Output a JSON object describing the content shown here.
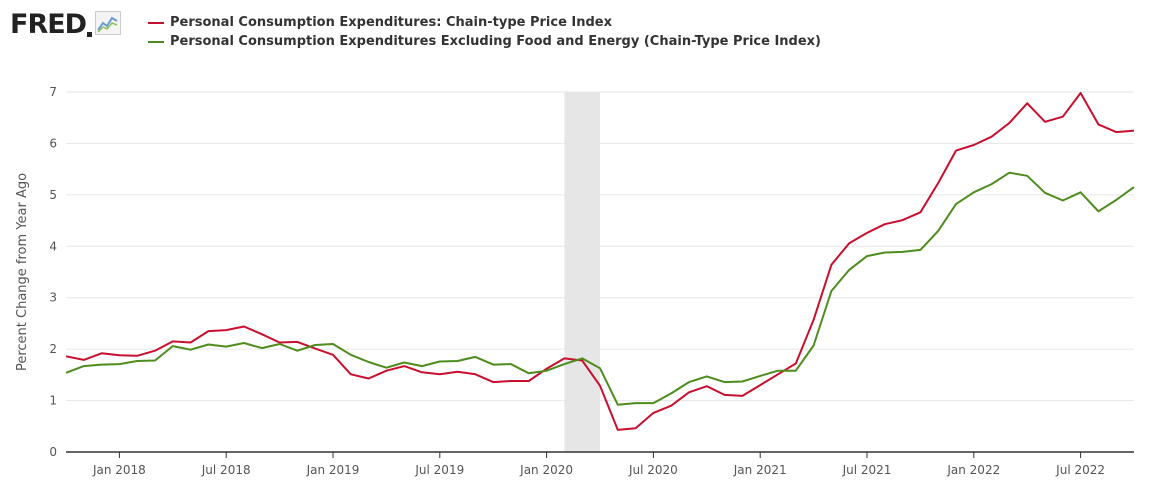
{
  "header": {
    "logo_text": "FRED",
    "logo_icon": "chart-line-icon"
  },
  "colors": {
    "series_1": "#c8102e",
    "series_2": "#4d8c1d",
    "recession_band": "#e6e6e6",
    "grid": "#e6e6e6",
    "axis": "#333333"
  },
  "chart_data": {
    "type": "line",
    "ylabel": "Percent Change from Year Ago",
    "ylim": [
      0,
      7
    ],
    "yticks": [
      "0",
      "1",
      "2",
      "3",
      "4",
      "5",
      "6",
      "7"
    ],
    "xlim": [
      "2017-10",
      "2022-10"
    ],
    "xticks": [
      {
        "label": "Jan 2018",
        "date": "2018-01"
      },
      {
        "label": "Jul 2018",
        "date": "2018-07"
      },
      {
        "label": "Jan 2019",
        "date": "2019-01"
      },
      {
        "label": "Jul 2019",
        "date": "2019-07"
      },
      {
        "label": "Jan 2020",
        "date": "2020-01"
      },
      {
        "label": "Jul 2020",
        "date": "2020-07"
      },
      {
        "label": "Jan 2021",
        "date": "2021-01"
      },
      {
        "label": "Jul 2021",
        "date": "2021-07"
      },
      {
        "label": "Jan 2022",
        "date": "2022-01"
      },
      {
        "label": "Jul 2022",
        "date": "2022-07"
      }
    ],
    "recession": {
      "start": "2020-02",
      "end": "2020-04"
    },
    "grid": true,
    "legend_position": "top-left",
    "x": [
      "2017-10",
      "2017-11",
      "2017-12",
      "2018-01",
      "2018-02",
      "2018-03",
      "2018-04",
      "2018-05",
      "2018-06",
      "2018-07",
      "2018-08",
      "2018-09",
      "2018-10",
      "2018-11",
      "2018-12",
      "2019-01",
      "2019-02",
      "2019-03",
      "2019-04",
      "2019-05",
      "2019-06",
      "2019-07",
      "2019-08",
      "2019-09",
      "2019-10",
      "2019-11",
      "2019-12",
      "2020-01",
      "2020-02",
      "2020-03",
      "2020-04",
      "2020-05",
      "2020-06",
      "2020-07",
      "2020-08",
      "2020-09",
      "2020-10",
      "2020-11",
      "2020-12",
      "2021-01",
      "2021-02",
      "2021-03",
      "2021-04",
      "2021-05",
      "2021-06",
      "2021-07",
      "2021-08",
      "2021-09",
      "2021-10",
      "2021-11",
      "2021-12",
      "2022-01",
      "2022-02",
      "2022-03",
      "2022-04",
      "2022-05",
      "2022-06",
      "2022-07",
      "2022-08",
      "2022-09",
      "2022-10"
    ],
    "series": [
      {
        "name": "Personal Consumption Expenditures: Chain-type Price Index",
        "color": "#c8102e",
        "values": [
          1.86,
          1.79,
          1.92,
          1.88,
          1.87,
          1.97,
          2.15,
          2.13,
          2.35,
          2.37,
          2.44,
          2.29,
          2.13,
          2.14,
          2.01,
          1.89,
          1.51,
          1.43,
          1.58,
          1.67,
          1.55,
          1.51,
          1.56,
          1.51,
          1.36,
          1.38,
          1.38,
          1.62,
          1.82,
          1.78,
          1.29,
          0.43,
          0.46,
          0.76,
          0.9,
          1.16,
          1.28,
          1.11,
          1.09,
          1.3,
          1.51,
          1.72,
          2.57,
          3.64,
          4.06,
          4.26,
          4.43,
          4.51,
          4.66,
          5.23,
          5.86,
          5.97,
          6.13,
          6.4,
          6.78,
          6.42,
          6.52,
          6.98,
          6.37,
          6.22,
          6.25
        ]
      },
      {
        "name": "Personal Consumption Expenditures Excluding Food and Energy (Chain-Type Price Index)",
        "color": "#4d8c1d",
        "values": [
          1.54,
          1.67,
          1.7,
          1.71,
          1.77,
          1.78,
          2.06,
          1.99,
          2.09,
          2.05,
          2.12,
          2.02,
          2.1,
          1.97,
          2.08,
          2.1,
          1.89,
          1.75,
          1.64,
          1.74,
          1.67,
          1.76,
          1.77,
          1.85,
          1.7,
          1.71,
          1.53,
          1.58,
          1.71,
          1.82,
          1.63,
          0.92,
          0.95,
          0.95,
          1.14,
          1.36,
          1.47,
          1.36,
          1.37,
          1.48,
          1.58,
          1.58,
          2.07,
          3.13,
          3.54,
          3.81,
          3.88,
          3.89,
          3.93,
          4.3,
          4.82,
          5.05,
          5.21,
          5.43,
          5.37,
          5.04,
          4.89,
          5.05,
          4.68,
          4.9,
          5.15
        ]
      }
    ]
  }
}
